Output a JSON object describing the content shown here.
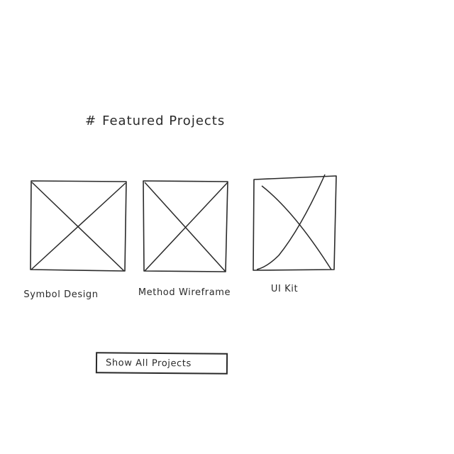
{
  "header": {
    "hash": "#",
    "title": "Featured Projects"
  },
  "projects": [
    {
      "name": "Symbol Design",
      "thumbnail_icon": "image-placeholder-icon"
    },
    {
      "name": "Method Wireframe",
      "thumbnail_icon": "image-placeholder-icon"
    },
    {
      "name": "UI Kit",
      "thumbnail_icon": "image-placeholder-icon"
    }
  ],
  "actions": {
    "show_all_label": "Show All Projects"
  },
  "colors": {
    "ink": "#2a2a2a",
    "background": "#ffffff"
  }
}
